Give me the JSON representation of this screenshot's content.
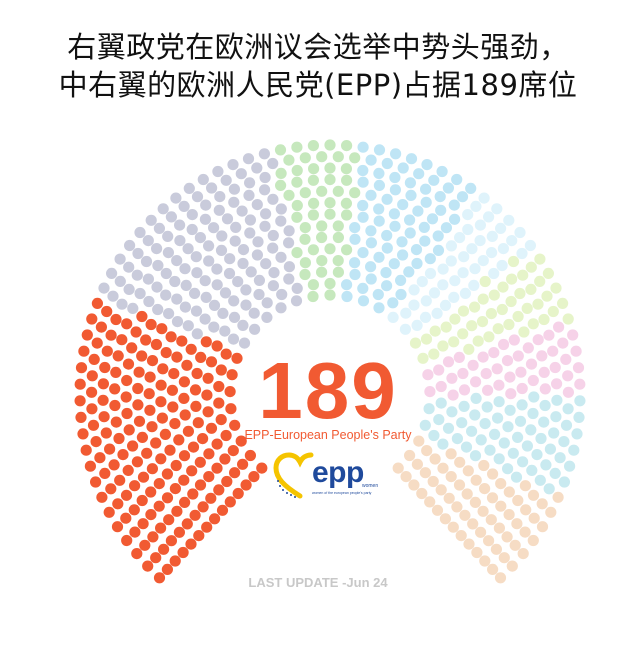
{
  "title": {
    "line1": "右翼政党在欧洲议会选举中势头强劲，",
    "line2": "中右翼的欧洲人民党(EPP)占据189席位"
  },
  "center": {
    "seats": "189",
    "party_name": "EPP-European People's Party"
  },
  "logo": {
    "word": "epp",
    "sub": "women",
    "tagline": "women of the european people's party",
    "colors": {
      "heart": "#f5c400",
      "text": "#1f4a9c"
    }
  },
  "footer": {
    "label": "LAST UPDATE",
    "date": "-Jun 24"
  },
  "chart_data": {
    "type": "parliament",
    "total_seats": 720,
    "series": [
      {
        "color": "#f15a32",
        "seats": 189
      },
      {
        "color": "#c9cbdb",
        "seats": 136
      },
      {
        "color": "#c6e8bd",
        "seats": 53
      },
      {
        "color": "#bfe5f5",
        "seats": 77
      },
      {
        "color": "#dff3fb",
        "seats": 46
      },
      {
        "color": "#e6f4c9",
        "seats": 46
      },
      {
        "color": "#f6d2e8",
        "seats": 46
      },
      {
        "color": "#c9eaf0",
        "seats": 61
      },
      {
        "color": "#f6dcc4",
        "seats": 66
      }
    ]
  }
}
